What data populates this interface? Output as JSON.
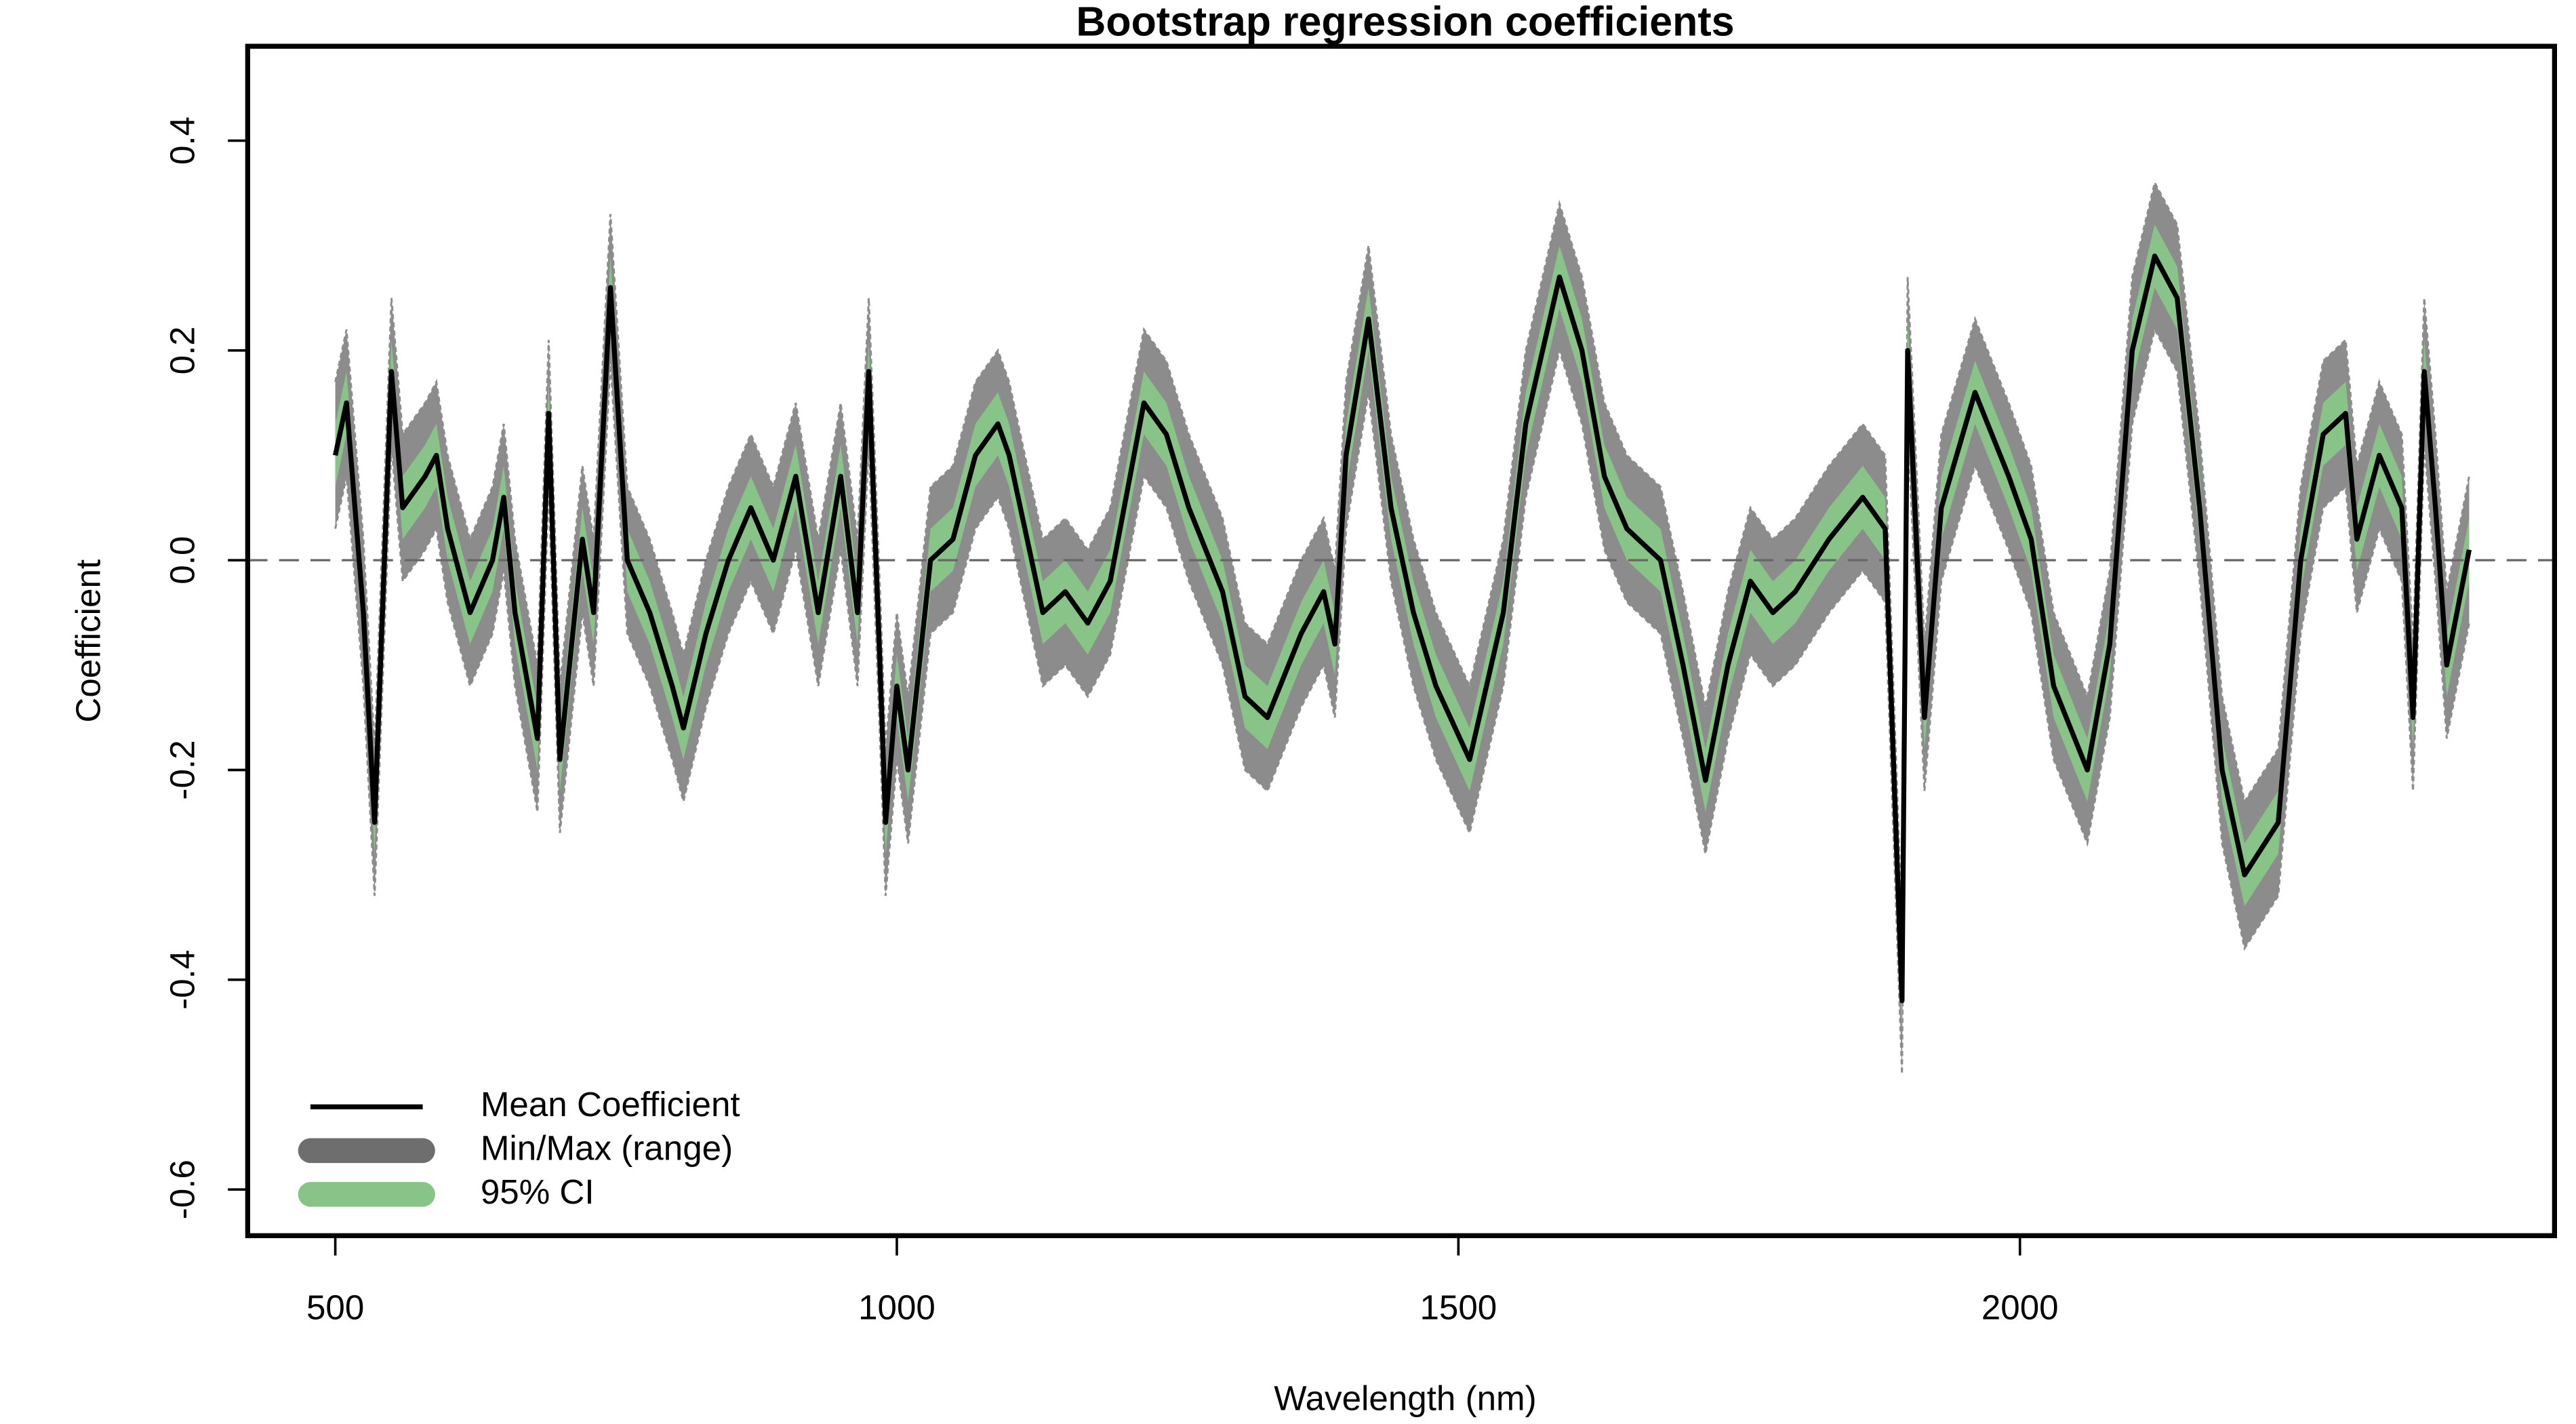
{
  "chart_data": {
    "type": "line",
    "title": "Bootstrap regression coefficients",
    "x_label": "Wavelength (nm)",
    "y_label": "Coefficient",
    "xlim": [
      422,
      2476
    ],
    "ylim": [
      -0.644,
      0.49
    ],
    "xticks": [
      500,
      1000,
      1500,
      2000
    ],
    "yticks": [
      -0.6,
      -0.4,
      -0.2,
      {
        "value": 0,
        "label": "0.0"
      },
      0.2,
      0.4
    ],
    "reference_line": 0,
    "legend": "bottom-left",
    "x": [
      500,
      510,
      525,
      535,
      550,
      560,
      580,
      590,
      600,
      620,
      640,
      650,
      660,
      680,
      690,
      700,
      720,
      730,
      745,
      760,
      780,
      800,
      810,
      830,
      850,
      870,
      890,
      910,
      930,
      950,
      965,
      975,
      985,
      990,
      1000,
      1010,
      1030,
      1050,
      1070,
      1090,
      1100,
      1110,
      1130,
      1150,
      1170,
      1190,
      1220,
      1240,
      1260,
      1290,
      1310,
      1330,
      1360,
      1380,
      1390,
      1400,
      1420,
      1440,
      1460,
      1480,
      1510,
      1540,
      1560,
      1590,
      1610,
      1630,
      1650,
      1680,
      1700,
      1720,
      1740,
      1760,
      1780,
      1800,
      1830,
      1860,
      1880,
      1895,
      1900,
      1915,
      1930,
      1960,
      1990,
      2010,
      2030,
      2060,
      2080,
      2100,
      2120,
      2140,
      2160,
      2180,
      2200,
      2230,
      2250,
      2270,
      2290,
      2300,
      2320,
      2340,
      2350,
      2360,
      2370,
      2380,
      2400
    ],
    "series": [
      {
        "name": "Mean Coefficient",
        "color": "#000000",
        "values": [
          0.1,
          0.15,
          -0.05,
          -0.25,
          0.18,
          0.05,
          0.08,
          0.1,
          0.03,
          -0.05,
          0.0,
          0.06,
          -0.05,
          -0.17,
          0.14,
          -0.19,
          0.02,
          -0.05,
          0.26,
          0.0,
          -0.05,
          -0.12,
          -0.16,
          -0.07,
          0.0,
          0.05,
          0.0,
          0.08,
          -0.05,
          0.08,
          -0.05,
          0.18,
          -0.1,
          -0.25,
          -0.12,
          -0.2,
          0.0,
          0.02,
          0.1,
          0.13,
          0.1,
          0.05,
          -0.05,
          -0.03,
          -0.06,
          -0.02,
          0.15,
          0.12,
          0.05,
          -0.03,
          -0.13,
          -0.15,
          -0.07,
          -0.03,
          -0.08,
          0.1,
          0.23,
          0.05,
          -0.05,
          -0.12,
          -0.19,
          -0.05,
          0.13,
          0.27,
          0.2,
          0.08,
          0.03,
          0.0,
          -0.1,
          -0.21,
          -0.1,
          -0.02,
          -0.05,
          -0.03,
          0.02,
          0.06,
          0.03,
          -0.42,
          0.2,
          -0.15,
          0.05,
          0.16,
          0.08,
          0.02,
          -0.12,
          -0.2,
          -0.08,
          0.2,
          0.29,
          0.25,
          0.05,
          -0.2,
          -0.3,
          -0.25,
          0.0,
          0.12,
          0.14,
          0.02,
          0.1,
          0.05,
          -0.15,
          0.18,
          0.05,
          -0.1,
          0.01
        ]
      },
      {
        "name": "Min/Max (range)",
        "color": "#8c8c8c",
        "lower": [
          0.03,
          0.08,
          -0.12,
          -0.32,
          0.11,
          -0.02,
          0.01,
          0.03,
          -0.04,
          -0.12,
          -0.07,
          -0.01,
          -0.12,
          -0.24,
          0.07,
          -0.26,
          -0.05,
          -0.12,
          0.19,
          -0.07,
          -0.12,
          -0.19,
          -0.23,
          -0.14,
          -0.07,
          -0.02,
          -0.07,
          0.01,
          -0.12,
          0.01,
          -0.12,
          0.11,
          -0.17,
          -0.32,
          -0.19,
          -0.27,
          -0.07,
          -0.05,
          0.03,
          0.06,
          0.03,
          -0.02,
          -0.12,
          -0.1,
          -0.13,
          -0.09,
          0.08,
          0.05,
          -0.02,
          -0.1,
          -0.2,
          -0.22,
          -0.14,
          -0.1,
          -0.15,
          0.03,
          0.16,
          -0.02,
          -0.12,
          -0.19,
          -0.26,
          -0.12,
          0.06,
          0.2,
          0.13,
          0.01,
          -0.04,
          -0.07,
          -0.17,
          -0.28,
          -0.17,
          -0.09,
          -0.12,
          -0.1,
          -0.05,
          -0.01,
          -0.04,
          -0.49,
          0.13,
          -0.22,
          -0.02,
          0.09,
          0.01,
          -0.05,
          -0.19,
          -0.27,
          -0.15,
          0.13,
          0.22,
          0.18,
          -0.02,
          -0.27,
          -0.37,
          -0.32,
          -0.07,
          0.05,
          0.07,
          -0.05,
          0.03,
          -0.02,
          -0.22,
          0.11,
          -0.02,
          -0.17,
          -0.06
        ],
        "upper": [
          0.17,
          0.22,
          0.02,
          -0.18,
          0.25,
          0.12,
          0.15,
          0.17,
          0.1,
          0.02,
          0.07,
          0.13,
          0.02,
          -0.1,
          0.21,
          -0.12,
          0.09,
          0.02,
          0.33,
          0.07,
          0.02,
          -0.05,
          -0.09,
          0.0,
          0.07,
          0.12,
          0.07,
          0.15,
          0.02,
          0.15,
          0.02,
          0.25,
          -0.03,
          -0.18,
          -0.05,
          -0.13,
          0.07,
          0.09,
          0.17,
          0.2,
          0.17,
          0.12,
          0.02,
          0.04,
          0.01,
          0.05,
          0.22,
          0.19,
          0.12,
          0.04,
          -0.06,
          -0.08,
          0.0,
          0.04,
          -0.01,
          0.17,
          0.3,
          0.12,
          0.02,
          -0.05,
          -0.12,
          0.02,
          0.2,
          0.34,
          0.27,
          0.15,
          0.1,
          0.07,
          -0.03,
          -0.14,
          -0.03,
          0.05,
          0.02,
          0.04,
          0.09,
          0.13,
          0.1,
          -0.35,
          0.27,
          -0.08,
          0.12,
          0.23,
          0.15,
          0.09,
          -0.05,
          -0.13,
          -0.01,
          0.27,
          0.36,
          0.32,
          0.12,
          -0.13,
          -0.23,
          -0.18,
          0.07,
          0.19,
          0.21,
          0.09,
          0.17,
          0.12,
          -0.08,
          0.25,
          0.12,
          -0.03,
          0.08
        ]
      },
      {
        "name": "95% CI",
        "color": "#88c488",
        "lower": [
          0.07,
          0.12,
          -0.08,
          -0.28,
          0.15,
          0.02,
          0.05,
          0.07,
          0.0,
          -0.08,
          -0.03,
          0.03,
          -0.08,
          -0.2,
          0.11,
          -0.22,
          -0.01,
          -0.08,
          0.23,
          -0.03,
          -0.08,
          -0.15,
          -0.19,
          -0.1,
          -0.03,
          0.02,
          -0.03,
          0.05,
          -0.08,
          0.05,
          -0.08,
          0.15,
          -0.13,
          -0.28,
          -0.15,
          -0.23,
          -0.03,
          -0.01,
          0.07,
          0.1,
          0.07,
          0.02,
          -0.08,
          -0.06,
          -0.09,
          -0.05,
          0.12,
          0.09,
          0.02,
          -0.06,
          -0.16,
          -0.18,
          -0.1,
          -0.06,
          -0.11,
          0.07,
          0.2,
          0.02,
          -0.08,
          -0.15,
          -0.22,
          -0.08,
          0.1,
          0.24,
          0.17,
          0.05,
          0.0,
          -0.03,
          -0.13,
          -0.24,
          -0.13,
          -0.05,
          -0.08,
          -0.06,
          -0.01,
          0.03,
          0.0,
          -0.45,
          0.17,
          -0.18,
          0.02,
          0.13,
          0.05,
          -0.01,
          -0.15,
          -0.23,
          -0.11,
          0.17,
          0.26,
          0.22,
          0.02,
          -0.23,
          -0.33,
          -0.28,
          -0.03,
          0.09,
          0.11,
          -0.01,
          0.07,
          0.02,
          -0.18,
          0.15,
          0.02,
          -0.13,
          -0.02
        ],
        "upper": [
          0.13,
          0.18,
          -0.02,
          -0.22,
          0.21,
          0.08,
          0.11,
          0.13,
          0.06,
          -0.02,
          0.03,
          0.09,
          -0.02,
          -0.14,
          0.17,
          -0.16,
          0.05,
          -0.02,
          0.29,
          0.03,
          -0.02,
          -0.09,
          -0.13,
          -0.04,
          0.03,
          0.08,
          0.03,
          0.11,
          -0.02,
          0.11,
          -0.02,
          0.21,
          -0.07,
          -0.22,
          -0.09,
          -0.17,
          0.03,
          0.05,
          0.13,
          0.16,
          0.13,
          0.08,
          -0.02,
          0.0,
          -0.03,
          0.01,
          0.18,
          0.15,
          0.08,
          0.0,
          -0.1,
          -0.12,
          -0.04,
          0.0,
          -0.05,
          0.13,
          0.26,
          0.08,
          -0.02,
          -0.09,
          -0.16,
          -0.02,
          0.16,
          0.3,
          0.23,
          0.11,
          0.06,
          0.03,
          -0.07,
          -0.18,
          -0.07,
          0.01,
          -0.02,
          0.0,
          0.05,
          0.09,
          0.06,
          -0.39,
          0.23,
          -0.12,
          0.08,
          0.19,
          0.11,
          0.05,
          -0.09,
          -0.17,
          -0.05,
          0.23,
          0.32,
          0.28,
          0.08,
          -0.17,
          -0.27,
          -0.22,
          0.03,
          0.15,
          0.17,
          0.05,
          0.13,
          0.08,
          -0.12,
          0.21,
          0.08,
          -0.07,
          0.04
        ]
      }
    ]
  }
}
